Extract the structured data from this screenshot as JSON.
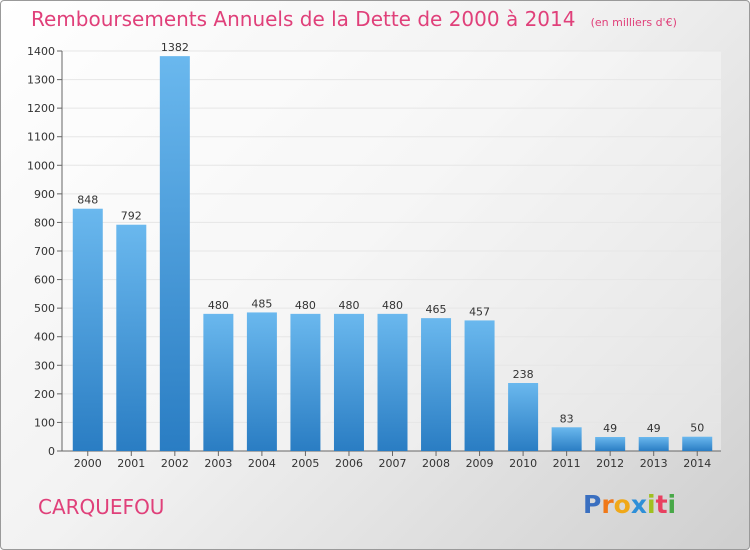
{
  "header": {
    "title": "Remboursements Annuels de la Dette de 2000 à 2014",
    "unit": "(en milliers d'€)"
  },
  "footer": {
    "city": "CARQUEFOU",
    "logo_letters": [
      "P",
      "r",
      "o",
      "x",
      "i",
      "t",
      "i"
    ]
  },
  "colors": {
    "accent": "#e0407a",
    "bar_light": "#6ab8ee",
    "bar_dark": "#2a7dc3",
    "logo": [
      "#3a6fc0",
      "#f07818",
      "#f0a818",
      "#2e8fd8",
      "#a0c020",
      "#e84060",
      "#48a848"
    ]
  },
  "chart_data": {
    "type": "bar",
    "categories": [
      "2000",
      "2001",
      "2002",
      "2003",
      "2004",
      "2005",
      "2006",
      "2007",
      "2008",
      "2009",
      "2010",
      "2011",
      "2012",
      "2013",
      "2014"
    ],
    "values": [
      848,
      792,
      1382,
      480,
      485,
      480,
      480,
      480,
      465,
      457,
      238,
      83,
      49,
      49,
      50
    ],
    "ylim": [
      0,
      1400
    ],
    "yticks": [
      0,
      100,
      200,
      300,
      400,
      500,
      600,
      700,
      800,
      900,
      1000,
      1100,
      1200,
      1300,
      1400
    ],
    "grid": true,
    "title": "Remboursements Annuels de la Dette de 2000 à 2014",
    "ylabel": "(en milliers d'€)",
    "xlabel": ""
  }
}
